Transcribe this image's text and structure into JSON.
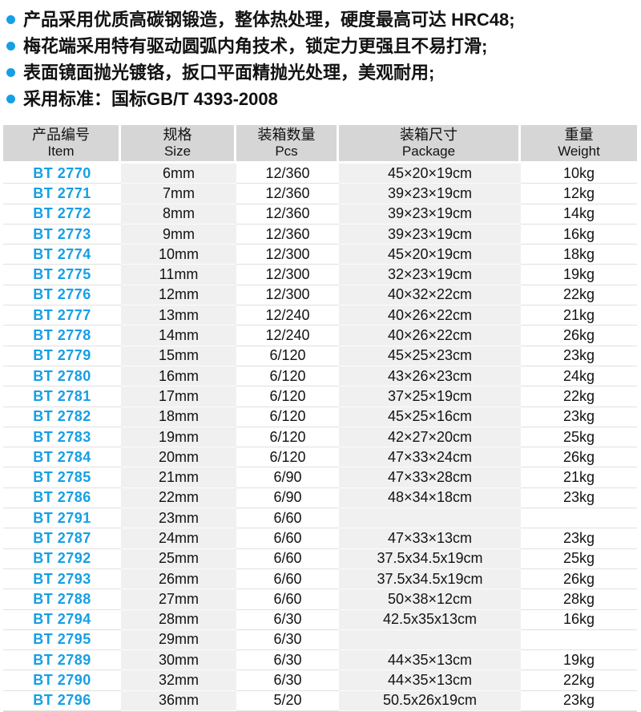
{
  "colors": {
    "accent": "#169fe5",
    "header_bg": "#d6d6d6",
    "band_bg": "#f0f0f0",
    "row_line": "#e0e0e0"
  },
  "features": [
    "产品采用优质高碳钢锻造，整体热处理，硬度最高可达 HRC48;",
    "梅花端采用特有驱动圆弧内角技术，锁定力更强且不易打滑;",
    "表面镜面抛光镀铬，扳口平面精抛光处理，美观耐用;",
    "采用标准：国标GB/T 4393-2008"
  ],
  "table": {
    "columns": [
      {
        "zh": "产品编号",
        "en": "Item"
      },
      {
        "zh": "规格",
        "en": "Size"
      },
      {
        "zh": "装箱数量",
        "en": "Pcs"
      },
      {
        "zh": "装箱尺寸",
        "en": "Package"
      },
      {
        "zh": "重量",
        "en": "Weight"
      }
    ],
    "rows": [
      {
        "item": "BT 2770",
        "size": "6mm",
        "pcs": "12/360",
        "package": "45×20×19cm",
        "weight": "10kg"
      },
      {
        "item": "BT 2771",
        "size": "7mm",
        "pcs": "12/360",
        "package": "39×23×19cm",
        "weight": "12kg"
      },
      {
        "item": "BT 2772",
        "size": "8mm",
        "pcs": "12/360",
        "package": "39×23×19cm",
        "weight": "14kg"
      },
      {
        "item": "BT 2773",
        "size": "9mm",
        "pcs": "12/360",
        "package": "39×23×19cm",
        "weight": "16kg"
      },
      {
        "item": "BT 2774",
        "size": "10mm",
        "pcs": "12/300",
        "package": "45×20×19cm",
        "weight": "18kg"
      },
      {
        "item": "BT 2775",
        "size": "11mm",
        "pcs": "12/300",
        "package": "32×23×19cm",
        "weight": "19kg"
      },
      {
        "item": "BT 2776",
        "size": "12mm",
        "pcs": "12/300",
        "package": "40×32×22cm",
        "weight": "22kg"
      },
      {
        "item": "BT 2777",
        "size": "13mm",
        "pcs": "12/240",
        "package": "40×26×22cm",
        "weight": "21kg"
      },
      {
        "item": "BT 2778",
        "size": "14mm",
        "pcs": "12/240",
        "package": "40×26×22cm",
        "weight": "26kg"
      },
      {
        "item": "BT 2779",
        "size": "15mm",
        "pcs": "6/120",
        "package": "45×25×23cm",
        "weight": "23kg"
      },
      {
        "item": "BT 2780",
        "size": "16mm",
        "pcs": "6/120",
        "package": "43×26×23cm",
        "weight": "24kg"
      },
      {
        "item": "BT 2781",
        "size": "17mm",
        "pcs": "6/120",
        "package": "37×25×19cm",
        "weight": "22kg"
      },
      {
        "item": "BT 2782",
        "size": "18mm",
        "pcs": "6/120",
        "package": "45×25×16cm",
        "weight": "23kg"
      },
      {
        "item": "BT 2783",
        "size": "19mm",
        "pcs": "6/120",
        "package": "42×27×20cm",
        "weight": "25kg"
      },
      {
        "item": "BT 2784",
        "size": "20mm",
        "pcs": "6/120",
        "package": "47×33×24cm",
        "weight": "26kg"
      },
      {
        "item": "BT 2785",
        "size": "21mm",
        "pcs": "6/90",
        "package": "47×33×28cm",
        "weight": "21kg"
      },
      {
        "item": "BT 2786",
        "size": "22mm",
        "pcs": "6/90",
        "package": "48×34×18cm",
        "weight": "23kg"
      },
      {
        "item": "BT 2791",
        "size": "23mm",
        "pcs": "6/60",
        "package": "",
        "weight": ""
      },
      {
        "item": "BT 2787",
        "size": "24mm",
        "pcs": "6/60",
        "package": "47×33×13cm",
        "weight": "23kg"
      },
      {
        "item": "BT 2792",
        "size": "25mm",
        "pcs": "6/60",
        "package": "37.5x34.5x19cm",
        "weight": "25kg"
      },
      {
        "item": "BT 2793",
        "size": "26mm",
        "pcs": "6/60",
        "package": "37.5x34.5x19cm",
        "weight": "26kg"
      },
      {
        "item": "BT 2788",
        "size": "27mm",
        "pcs": "6/60",
        "package": "50×38×12cm",
        "weight": "28kg"
      },
      {
        "item": "BT 2794",
        "size": "28mm",
        "pcs": "6/30",
        "package": "42.5x35x13cm",
        "weight": "16kg"
      },
      {
        "item": "BT 2795",
        "size": "29mm",
        "pcs": "6/30",
        "package": "",
        "weight": ""
      },
      {
        "item": "BT 2789",
        "size": "30mm",
        "pcs": "6/30",
        "package": "44×35×13cm",
        "weight": "19kg"
      },
      {
        "item": "BT 2790",
        "size": "32mm",
        "pcs": "6/30",
        "package": "44×35×13cm",
        "weight": "22kg"
      },
      {
        "item": "BT 2796",
        "size": "36mm",
        "pcs": "5/20",
        "package": "50.5x26x19cm",
        "weight": "23kg"
      }
    ]
  }
}
